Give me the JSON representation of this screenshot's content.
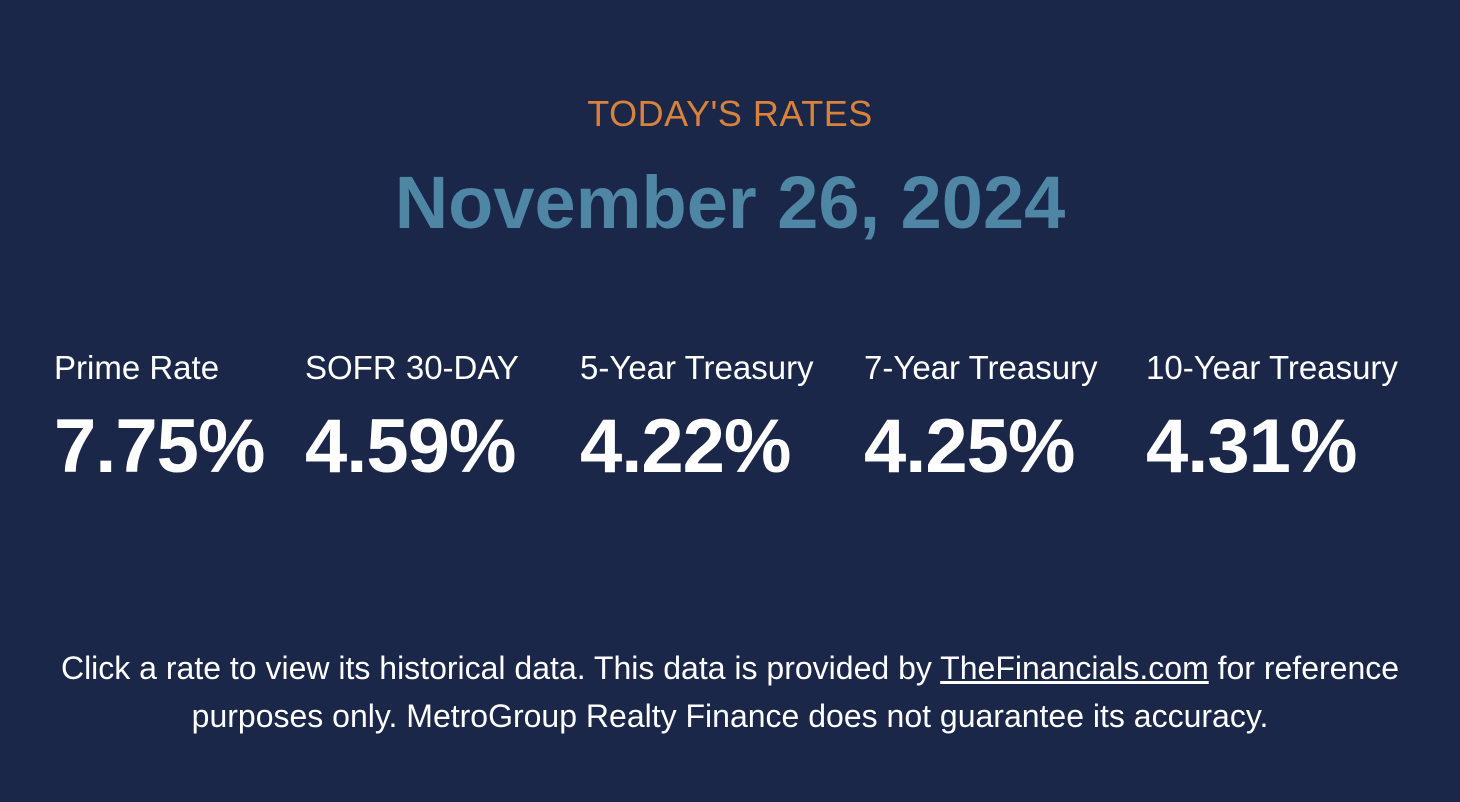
{
  "header": {
    "kicker": "TODAY'S RATES",
    "date": "November 26, 2024"
  },
  "rates": [
    {
      "label": "Prime Rate",
      "value": "7.75%"
    },
    {
      "label": "SOFR 30-DAY",
      "value": "4.59%"
    },
    {
      "label": "5-Year Treasury",
      "value": "4.22%"
    },
    {
      "label": "7-Year Treasury",
      "value": "4.25%"
    },
    {
      "label": "10-Year Treasury",
      "value": "4.31%"
    }
  ],
  "notice": {
    "text_before": "Click a rate to view its historical data. This data is provided by ",
    "link_text": "TheFinancials.com",
    "text_after": " for reference purposes only. MetroGroup Realty Finance does not guarantee its accuracy."
  },
  "colors": {
    "background": "#1a2749",
    "kicker": "#d9823a",
    "date": "#4e86a4",
    "text": "#ffffff"
  }
}
